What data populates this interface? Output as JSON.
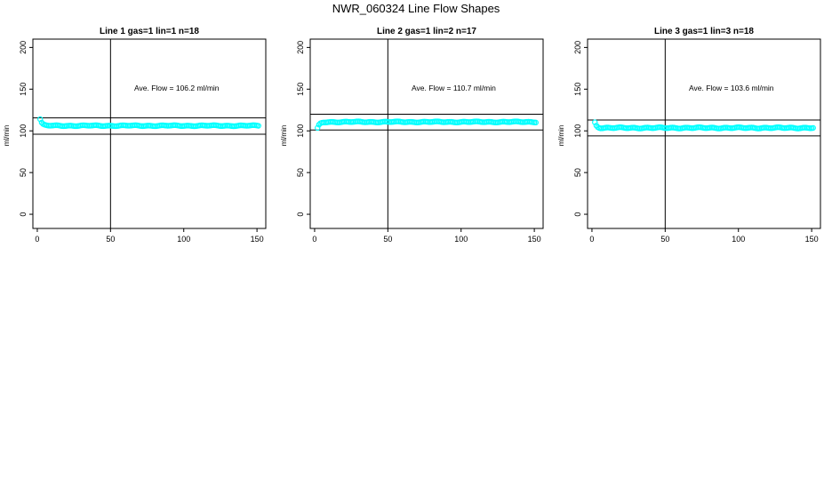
{
  "page": {
    "title": "NWR_060324  Line Flow Shapes"
  },
  "chart_data": [
    {
      "type": "scatter",
      "title": "Line 1 gas=1 lin=1 n=18",
      "ylabel": "ml/min",
      "xlim": [
        -3,
        156
      ],
      "ylim": [
        -17,
        210
      ],
      "xticks": [
        0,
        50,
        100,
        150
      ],
      "yticks": [
        0,
        50,
        100,
        150,
        200
      ],
      "annotation": "Ave. Flow =  106.2  ml/min",
      "mean": 106.2,
      "hlines": [
        115.5,
        96.0
      ],
      "vline": 50,
      "point_color": "#00ffff",
      "series": {
        "start": 114,
        "plateau": 106.2,
        "decay": 1.2,
        "amp": 0.4
      }
    },
    {
      "type": "scatter",
      "title": "Line 2 gas=1 lin=2 n=17",
      "ylabel": "ml/min",
      "xlim": [
        -3,
        156
      ],
      "ylim": [
        -17,
        210
      ],
      "xticks": [
        0,
        50,
        100,
        150
      ],
      "yticks": [
        0,
        50,
        100,
        150,
        200
      ],
      "annotation": "Ave. Flow =  110.7  ml/min",
      "mean": 110.7,
      "hlines": [
        120.0,
        101.0
      ],
      "vline": 50,
      "point_color": "#00ffff",
      "series": {
        "start": 103,
        "plateau": 110.7,
        "decay": 1.5,
        "amp": 0.4
      }
    },
    {
      "type": "scatter",
      "title": "Line 3 gas=1 lin=3 n=18",
      "ylabel": "ml/min",
      "xlim": [
        -3,
        156
      ],
      "ylim": [
        -17,
        210
      ],
      "xticks": [
        0,
        50,
        100,
        150
      ],
      "yticks": [
        0,
        50,
        100,
        150,
        200
      ],
      "annotation": "Ave. Flow =  103.6  ml/min",
      "mean": 103.6,
      "hlines": [
        113.0,
        94.0
      ],
      "vline": 50,
      "point_color": "#00ffff",
      "series": {
        "start": 110,
        "plateau": 103.6,
        "decay": 1.2,
        "amp": 0.5
      }
    }
  ]
}
